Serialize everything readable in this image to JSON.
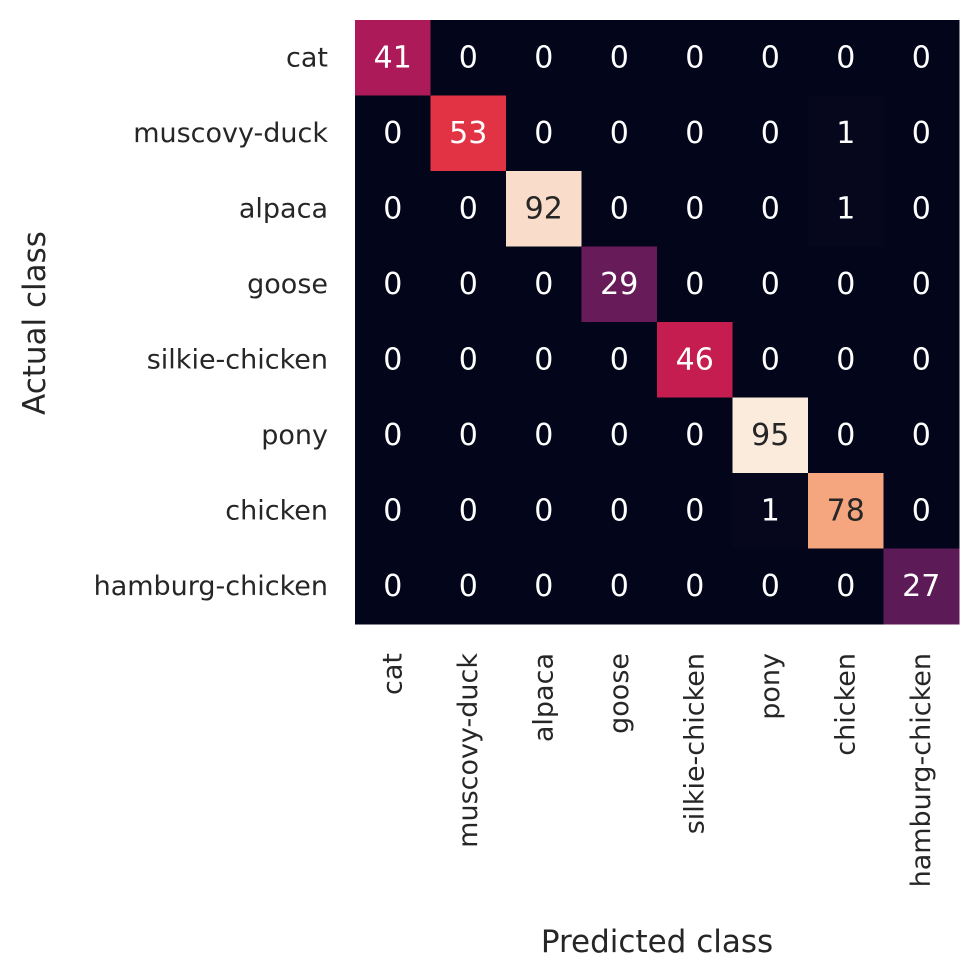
{
  "chart_data": {
    "type": "heatmap",
    "xlabel": "Predicted class",
    "ylabel": "Actual class",
    "x_categories": [
      "cat",
      "muscovy-duck",
      "alpaca",
      "goose",
      "silkie-chicken",
      "pony",
      "chicken",
      "hamburg-chicken"
    ],
    "y_categories": [
      "cat",
      "muscovy-duck",
      "alpaca",
      "goose",
      "silkie-chicken",
      "pony",
      "chicken",
      "hamburg-chicken"
    ],
    "values": [
      [
        41,
        0,
        0,
        0,
        0,
        0,
        0,
        0
      ],
      [
        0,
        53,
        0,
        0,
        0,
        0,
        1,
        0
      ],
      [
        0,
        0,
        92,
        0,
        0,
        0,
        1,
        0
      ],
      [
        0,
        0,
        0,
        29,
        0,
        0,
        0,
        0
      ],
      [
        0,
        0,
        0,
        0,
        46,
        0,
        0,
        0
      ],
      [
        0,
        0,
        0,
        0,
        0,
        95,
        0,
        0
      ],
      [
        0,
        0,
        0,
        0,
        0,
        1,
        78,
        0
      ],
      [
        0,
        0,
        0,
        0,
        0,
        0,
        0,
        27
      ]
    ],
    "value_range": [
      0,
      95
    ],
    "colormap": "rocket",
    "colorbar": false,
    "annotated": true,
    "grid": false
  }
}
